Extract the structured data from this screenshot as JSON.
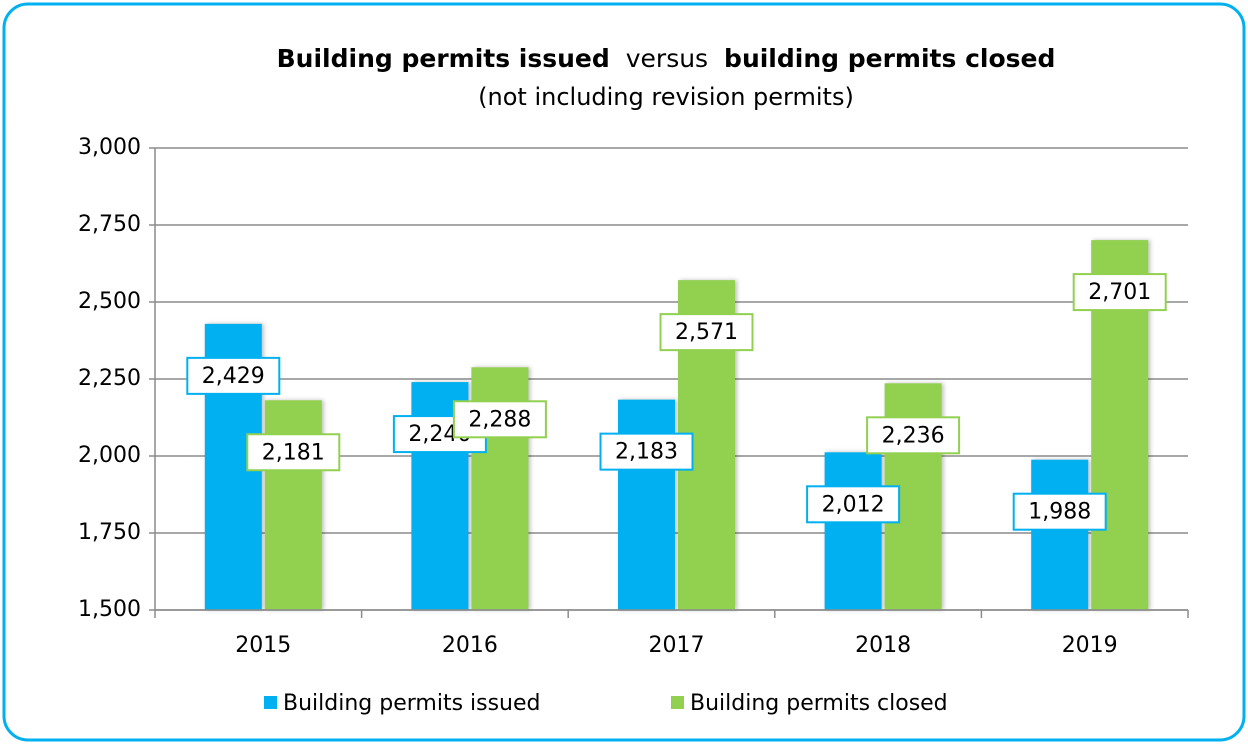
{
  "chart_data": {
    "type": "bar",
    "title": [
      {
        "text": "Building permits issued",
        "bold": true
      },
      {
        "text": "versus",
        "bold": false
      },
      {
        "text": "building permits closed",
        "bold": true
      }
    ],
    "subtitle": "(not including revision permits)",
    "categories": [
      "2015",
      "2016",
      "2017",
      "2018",
      "2019"
    ],
    "series": [
      {
        "name": "Building permits issued",
        "color": "#00b0f0",
        "values": [
          2429,
          2240,
          2183,
          2012,
          1988
        ],
        "value_labels": [
          "2,429",
          "2,240",
          "2,183",
          "2,012",
          "1,988"
        ]
      },
      {
        "name": "Building permits closed",
        "color": "#92d050",
        "values": [
          2181,
          2288,
          2571,
          2236,
          2701
        ],
        "value_labels": [
          "2,181",
          "2,288",
          "2,571",
          "2,236",
          "2,701"
        ]
      }
    ],
    "ylim": [
      1500,
      3000
    ],
    "yticks": [
      {
        "value": 1500,
        "label": "1,500"
      },
      {
        "value": 1750,
        "label": "1,750"
      },
      {
        "value": 2000,
        "label": "2,000"
      },
      {
        "value": 2250,
        "label": "2,250"
      },
      {
        "value": 2500,
        "label": "2,500"
      },
      {
        "value": 2750,
        "label": "2,750"
      },
      {
        "value": 3000,
        "label": "3,000"
      }
    ],
    "grid": true,
    "legend": "bottom"
  }
}
